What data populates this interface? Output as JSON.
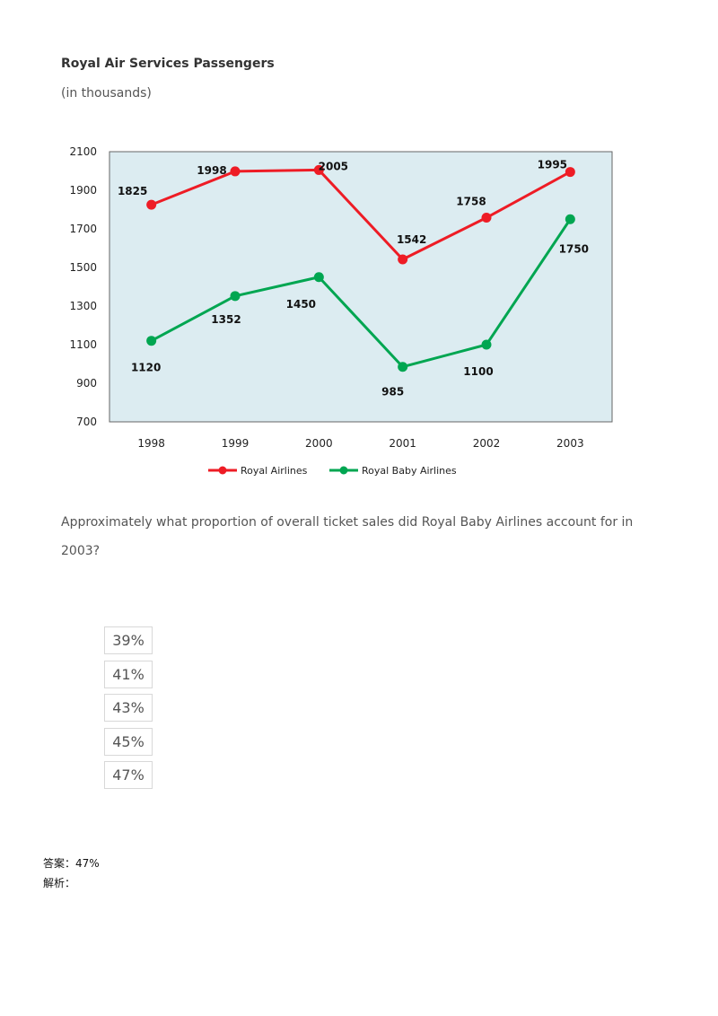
{
  "chart_data": {
    "type": "line",
    "title": "Royal Air Services Passengers",
    "subtitle": "(in thousands)",
    "categories": [
      "1998",
      "1999",
      "2000",
      "2001",
      "2002",
      "2003"
    ],
    "series": [
      {
        "name": "Royal Airlines",
        "color": "#ee1c25",
        "values": [
          1825,
          1998,
          2005,
          1542,
          1758,
          1995
        ]
      },
      {
        "name": "Royal Baby Airlines",
        "color": "#00a651",
        "values": [
          1120,
          1352,
          1450,
          985,
          1100,
          1750
        ]
      }
    ],
    "ylim": [
      700,
      2100
    ],
    "yticks": [
      700,
      900,
      1100,
      1300,
      1500,
      1700,
      1900,
      2100
    ],
    "plot_background": "#dcecf1",
    "legend_position": "bottom"
  },
  "question": {
    "text": "Approximately what proportion of overall ticket sales did Royal Baby Airlines account for in 2003?",
    "options": [
      "39%",
      "41%",
      "43%",
      "45%",
      "47%"
    ]
  },
  "answer": {
    "label": "答案：",
    "value": "47%"
  },
  "analysis": {
    "label": "解析："
  }
}
